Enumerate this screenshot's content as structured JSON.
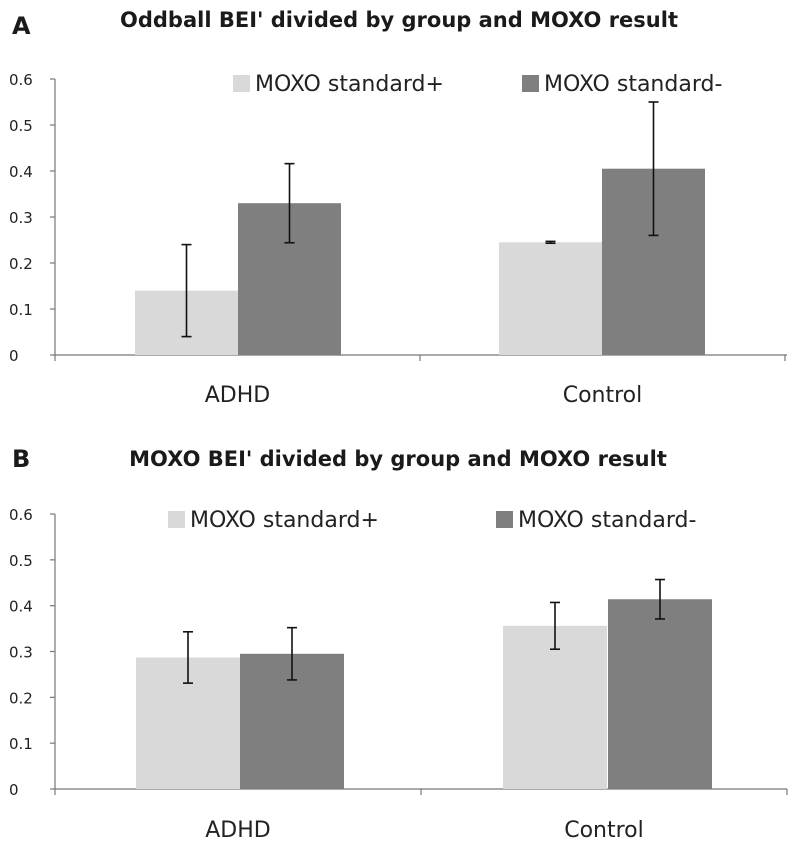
{
  "chart_data": [
    {
      "panel": "A",
      "type": "bar",
      "title": "Oddball BEI' divided by group and MOXO result",
      "categories": [
        "ADHD",
        "Control"
      ],
      "series": [
        {
          "name": "MOXO standard+",
          "values": [
            0.14,
            0.245
          ],
          "errors": [
            0.1,
            0.002
          ],
          "color": "#d9d9d9"
        },
        {
          "name": "MOXO standard-",
          "values": [
            0.33,
            0.405
          ],
          "errors": [
            0.086,
            0.145
          ],
          "color": "#7f7f7f"
        }
      ],
      "ylim": [
        0,
        0.6
      ],
      "yticks": [
        "0",
        "0.1",
        "0.2",
        "0.3",
        "0.4",
        "0.5",
        "0.6"
      ],
      "xlabel": "",
      "ylabel": "",
      "grid": false,
      "legend": "top"
    },
    {
      "panel": "B",
      "type": "bar",
      "title": "MOXO BEI' divided by group and MOXO result",
      "categories": [
        "ADHD",
        "Control"
      ],
      "series": [
        {
          "name": "MOXO standard+",
          "values": [
            0.287,
            0.356
          ],
          "errors": [
            0.056,
            0.051
          ],
          "color": "#d9d9d9"
        },
        {
          "name": "MOXO standard-",
          "values": [
            0.295,
            0.414
          ],
          "errors": [
            0.057,
            0.043
          ],
          "color": "#7f7f7f"
        }
      ],
      "ylim": [
        0,
        0.6
      ],
      "yticks": [
        "0",
        "0.1",
        "0.2",
        "0.3",
        "0.4",
        "0.5",
        "0.6"
      ],
      "xlabel": "",
      "ylabel": "",
      "grid": false,
      "legend": "top"
    }
  ]
}
